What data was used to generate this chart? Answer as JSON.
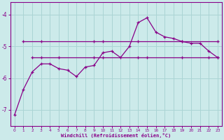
{
  "xlabel": "Windchill (Refroidissement éolien,°C)",
  "bg_color": "#cceaea",
  "line_color": "#880088",
  "grid_color": "#aad4d4",
  "axis_color": "#880088",
  "x_ticks": [
    0,
    1,
    2,
    3,
    4,
    5,
    6,
    7,
    8,
    9,
    10,
    11,
    12,
    13,
    14,
    15,
    16,
    17,
    18,
    19,
    20,
    21,
    22,
    23
  ],
  "y_ticks": [
    -7,
    -6,
    -5,
    -4
  ],
  "ylim": [
    -7.5,
    -3.6
  ],
  "xlim": [
    -0.5,
    23.5
  ],
  "line1_x": [
    0,
    1,
    2,
    3,
    4,
    5,
    6,
    7,
    8,
    9,
    10,
    11,
    12,
    13,
    14,
    15,
    16,
    17,
    18,
    19,
    20,
    21,
    22,
    23
  ],
  "line1_y": [
    -7.15,
    -6.35,
    -5.8,
    -5.55,
    -5.55,
    -5.7,
    -5.75,
    -5.95,
    -5.65,
    -5.6,
    -5.2,
    -5.15,
    -5.35,
    -5.0,
    -4.25,
    -4.1,
    -4.55,
    -4.7,
    -4.75,
    -4.85,
    -4.9,
    -4.9,
    -5.15,
    -5.35
  ],
  "line2_x": [
    1,
    3,
    9,
    10,
    14,
    19,
    23
  ],
  "line2_y": [
    -4.85,
    -4.85,
    -4.85,
    -4.85,
    -4.85,
    -4.85,
    -4.85
  ],
  "line3_x": [
    2,
    3,
    5,
    9,
    10,
    14,
    15,
    19,
    22,
    23
  ],
  "line3_y": [
    -5.35,
    -5.35,
    -5.35,
    -5.35,
    -5.35,
    -5.35,
    -5.35,
    -5.35,
    -5.35,
    -5.35
  ]
}
